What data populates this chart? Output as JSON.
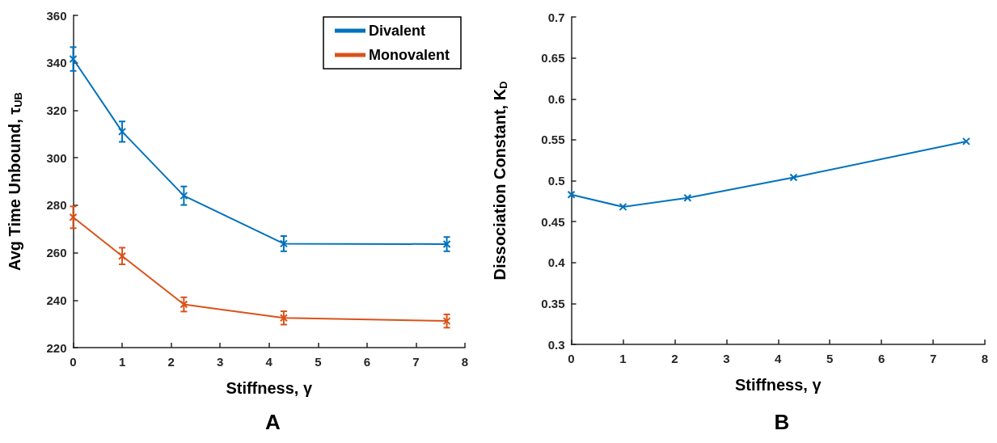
{
  "chart_data": [
    {
      "type": "line",
      "title": "A",
      "xlabel": "Stiffness, γ",
      "ylabel": "Avg Time Unbound, τ$_{UB}$",
      "x": [
        0,
        1,
        2.26,
        4.3,
        7.63
      ],
      "series": [
        {
          "name": "Divalent",
          "color": "#0072bd",
          "values": [
            341.6,
            311,
            284,
            263.8,
            263.6
          ],
          "errors": [
            5,
            4.3,
            3.9,
            3.2,
            3
          ]
        },
        {
          "name": "Monovalent",
          "color": "#d95319",
          "values": [
            274.9,
            258.6,
            238.2,
            232.5,
            231.2
          ],
          "errors": [
            4.6,
            3.5,
            3,
            2.8,
            2.8
          ]
        }
      ],
      "xlim": [
        0,
        8
      ],
      "xticks": [
        0,
        1,
        2,
        3,
        4,
        5,
        6,
        7,
        8
      ],
      "ylim": [
        220,
        360
      ],
      "yticks": [
        220,
        240,
        260,
        280,
        300,
        320,
        340,
        360
      ],
      "legend": "top right",
      "marker": "cross",
      "grid": false
    },
    {
      "type": "line",
      "title": "B",
      "xlabel": "Stiffness, γ",
      "ylabel": "Dissociation Constant, K$_{D}$",
      "x": [
        0,
        1,
        2.25,
        4.3,
        7.64
      ],
      "series": [
        {
          "color": "#0072bd",
          "values": [
            0.483,
            0.468,
            0.479,
            0.504,
            0.548
          ]
        }
      ],
      "xlim": [
        0,
        8
      ],
      "xticks": [
        0,
        1,
        2,
        3,
        4,
        5,
        6,
        7,
        8
      ],
      "ylim": [
        0.3,
        0.7
      ],
      "yticks": [
        0.3,
        0.35,
        0.4,
        0.45,
        0.5,
        0.55,
        0.6,
        0.65,
        0.7
      ],
      "marker": "cross",
      "grid": false
    }
  ]
}
